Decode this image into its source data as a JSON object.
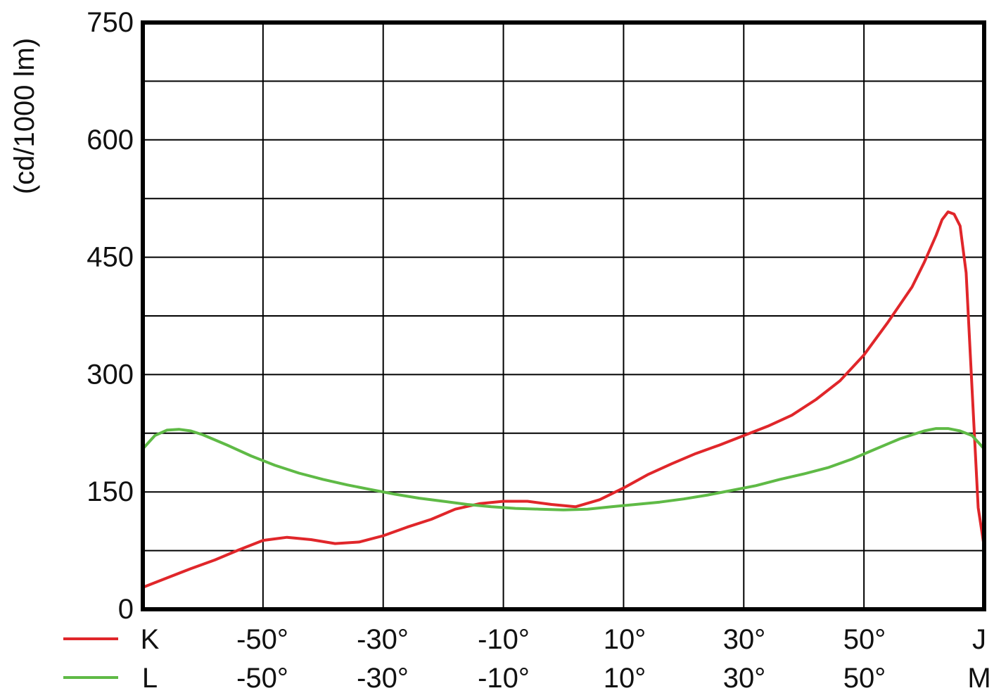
{
  "chart_data": {
    "type": "line",
    "ylabel": "(cd/1000 lm)",
    "ylim": [
      0,
      750
    ],
    "xlim": [
      -70,
      70
    ],
    "yticks": [
      "0",
      "150",
      "300",
      "450",
      "600",
      "750"
    ],
    "grid": true,
    "legend_position": "bottom-left",
    "series": [
      {
        "name": "K",
        "color": "#e0262a",
        "axis_labels": [
          "K",
          "-50°",
          "-30°",
          "-10°",
          "10°",
          "30°",
          "50°",
          "J"
        ],
        "x": [
          -70,
          -66,
          -62,
          -58,
          -54,
          -50,
          -46,
          -42,
          -38,
          -34,
          -30,
          -26,
          -22,
          -18,
          -14,
          -10,
          -6,
          -2,
          2,
          6,
          10,
          14,
          18,
          22,
          26,
          30,
          34,
          38,
          42,
          46,
          50,
          54,
          58,
          60,
          62,
          63,
          64,
          65,
          66,
          67,
          68,
          69,
          70
        ],
        "y": [
          28,
          40,
          52,
          63,
          76,
          88,
          92,
          89,
          84,
          86,
          94,
          105,
          115,
          128,
          135,
          138,
          138,
          134,
          131,
          140,
          155,
          172,
          186,
          199,
          210,
          222,
          234,
          248,
          268,
          292,
          325,
          367,
          412,
          443,
          478,
          498,
          508,
          505,
          490,
          430,
          280,
          130,
          80
        ]
      },
      {
        "name": "L",
        "color": "#5fba46",
        "axis_labels": [
          "L",
          "-50°",
          "-30°",
          "-10°",
          "10°",
          "30°",
          "50°",
          "M"
        ],
        "x": [
          -70,
          -68,
          -66,
          -64,
          -62,
          -60,
          -56,
          -52,
          -48,
          -44,
          -40,
          -36,
          -32,
          -28,
          -24,
          -20,
          -16,
          -12,
          -8,
          -4,
          0,
          4,
          8,
          12,
          16,
          20,
          24,
          28,
          32,
          36,
          40,
          44,
          48,
          52,
          56,
          60,
          62,
          64,
          66,
          68,
          70
        ],
        "y": [
          205,
          222,
          229,
          230,
          228,
          223,
          210,
          196,
          184,
          174,
          166,
          159,
          153,
          147,
          142,
          138,
          134,
          131,
          129,
          128,
          127,
          128,
          131,
          134,
          137,
          141,
          146,
          152,
          158,
          166,
          173,
          181,
          192,
          205,
          218,
          228,
          231,
          231,
          228,
          222,
          205
        ]
      }
    ]
  }
}
